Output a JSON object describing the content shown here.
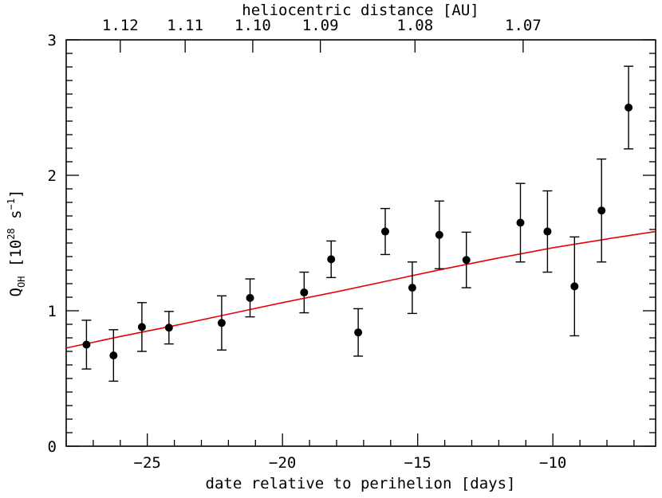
{
  "chart_data": {
    "type": "scatter",
    "title": "",
    "xlabel": "date relative to perihelion [days]",
    "ylabel": {
      "prefix": "Q",
      "subscript": "OH",
      "bracket_open": " [10",
      "superscript": "28",
      "unit_mid": " s",
      "unit_sup": "−1",
      "bracket_close": "]"
    },
    "top_axis_label": "heliocentric distance [AU]",
    "xlim": [
      -28,
      -6.2
    ],
    "ylim": [
      0,
      3
    ],
    "x_ticks": [
      -25,
      -20,
      -15,
      -10
    ],
    "x_tick_labels": [
      "−25",
      "−20",
      "−15",
      "−10"
    ],
    "y_ticks": [
      0,
      1,
      2,
      3
    ],
    "y_tick_labels": [
      "0",
      "1",
      "2",
      "3"
    ],
    "top_ticks": [
      {
        "label": "1.12",
        "x": -26.0
      },
      {
        "label": "1.11",
        "x": -23.6
      },
      {
        "label": "1.10",
        "x": -21.1
      },
      {
        "label": "1.09",
        "x": -18.6
      },
      {
        "label": "1.08",
        "x": -15.1
      },
      {
        "label": "1.07",
        "x": -11.1
      }
    ],
    "grid": false,
    "series": [
      {
        "type": "scatter",
        "errorbars": true,
        "color": "#000000",
        "points": [
          {
            "x": -27.25,
            "y": 0.75,
            "err": 0.18
          },
          {
            "x": -26.25,
            "y": 0.67,
            "err": 0.19
          },
          {
            "x": -25.2,
            "y": 0.88,
            "err": 0.18
          },
          {
            "x": -24.2,
            "y": 0.875,
            "err": 0.12
          },
          {
            "x": -22.25,
            "y": 0.91,
            "err": 0.2
          },
          {
            "x": -21.2,
            "y": 1.095,
            "err": 0.14
          },
          {
            "x": -19.2,
            "y": 1.135,
            "err": 0.15
          },
          {
            "x": -18.2,
            "y": 1.38,
            "err": 0.135
          },
          {
            "x": -17.2,
            "y": 0.84,
            "err": 0.175
          },
          {
            "x": -16.2,
            "y": 1.585,
            "err": 0.17
          },
          {
            "x": -15.2,
            "y": 1.17,
            "err": 0.19
          },
          {
            "x": -14.2,
            "y": 1.56,
            "err": 0.25
          },
          {
            "x": -13.2,
            "y": 1.375,
            "err": 0.205
          },
          {
            "x": -11.2,
            "y": 1.65,
            "err": 0.29
          },
          {
            "x": -10.2,
            "y": 1.585,
            "err": 0.3
          },
          {
            "x": -9.2,
            "y": 1.18,
            "err": 0.365
          },
          {
            "x": -8.2,
            "y": 1.74,
            "err": 0.38
          },
          {
            "x": -7.2,
            "y": 2.5,
            "err": 0.305
          }
        ]
      },
      {
        "type": "line",
        "color": "#e8000b",
        "points": [
          {
            "x": -28.0,
            "y": 0.725
          },
          {
            "x": -26.0,
            "y": 0.81
          },
          {
            "x": -24.0,
            "y": 0.89
          },
          {
            "x": -22.0,
            "y": 0.975
          },
          {
            "x": -20.0,
            "y": 1.06
          },
          {
            "x": -18.0,
            "y": 1.14
          },
          {
            "x": -16.0,
            "y": 1.225
          },
          {
            "x": -14.0,
            "y": 1.31
          },
          {
            "x": -12.0,
            "y": 1.39
          },
          {
            "x": -10.0,
            "y": 1.465
          },
          {
            "x": -8.0,
            "y": 1.53
          },
          {
            "x": -6.2,
            "y": 1.585
          }
        ]
      }
    ]
  }
}
